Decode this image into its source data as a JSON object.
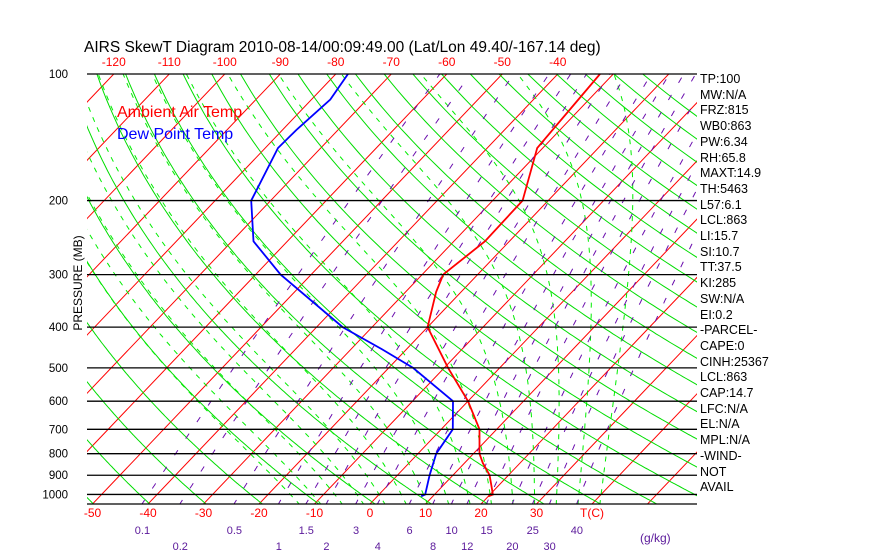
{
  "chart_data": {
    "type": "line",
    "title": "AIRS SkewT Diagram 2010-08-14/00:09:49.00 (Lat/Lon 49.40/-167.14 deg)",
    "ylabel": "PRESSURE (MB)",
    "xlabel": "T(C)",
    "mixing_ratio_unit": "(g/kg)",
    "ylim": [
      1050,
      100
    ],
    "y_scale": "log",
    "pressure_ticks": [
      "100",
      "200",
      "300",
      "400",
      "500",
      "600",
      "700",
      "800",
      "900",
      "1000"
    ],
    "pressure_tick_values": [
      100,
      200,
      300,
      400,
      500,
      600,
      700,
      800,
      900,
      1000
    ],
    "bottom_temp_ticks": [
      -50,
      -40,
      -30,
      -20,
      -10,
      0,
      10,
      20,
      30
    ],
    "bottom_temp_labels": [
      "-50",
      "-40",
      "-30",
      "-20",
      "-10",
      "0",
      "10",
      "20",
      "30"
    ],
    "top_temp_ticks": [
      -120,
      -110,
      -100,
      -90,
      -80,
      -70,
      -60,
      -50,
      -40
    ],
    "top_temp_labels": [
      "-120",
      "-110",
      "-100",
      "-90",
      "-80",
      "-70",
      "-60",
      "-50",
      "-40"
    ],
    "mixing_ratios": [
      0.1,
      0.2,
      0.5,
      1,
      1.5,
      2,
      3,
      4,
      6,
      8,
      10,
      12,
      15,
      20,
      25,
      30,
      40
    ],
    "mixing_ratio_labels": [
      "0.1",
      "0.2",
      "0.5",
      "1",
      "1.5",
      "2",
      "3",
      "4",
      "6",
      "8",
      "10",
      "12",
      "15",
      "20",
      "25",
      "30",
      "40"
    ],
    "legend": [
      "Ambient Air Temp",
      "Dew Point Temp"
    ],
    "legend_placement": "top-left",
    "series": [
      {
        "name": "Ambient Air Temp",
        "color": "#ff0000",
        "pressure": [
          1010,
          1000,
          900,
          842,
          800,
          700,
          600,
          500,
          400,
          330,
          300,
          250,
          200,
          150,
          115,
          100
        ],
        "temperature": [
          20.0,
          20.5,
          16.6,
          13.3,
          11.1,
          6.9,
          0.0,
          -9.3,
          -20.0,
          -24.5,
          -26.2,
          -24.4,
          -24.6,
          -31.0,
          -31.9,
          -32.4
        ]
      },
      {
        "name": "Dew Point Temp",
        "color": "#0000ff",
        "pressure": [
          1010,
          1000,
          900,
          800,
          700,
          600,
          500,
          452,
          400,
          300,
          250,
          200,
          150,
          136,
          115,
          100
        ],
        "temperature": [
          7.9,
          8.3,
          5.8,
          3.3,
          2.1,
          -2.7,
          -15.6,
          -24.3,
          -35.3,
          -55.5,
          -66.1,
          -73.5,
          -77.7,
          -77.5,
          -76.6,
          -77.8
        ]
      }
    ],
    "colors": {
      "isotherm": "#ff0000",
      "dry_adiabat": "#00dd00",
      "moist_adiabat": "#00ee00",
      "mixing_ratio": "#6a0dad",
      "axis_top": "#ff0000",
      "mixing_label": "#5a189a"
    }
  },
  "indices_panel": [
    "TP:100",
    "MW:N/A",
    "FRZ:815",
    "WB0:863",
    "PW:6.34",
    "RH:65.8",
    "MAXT:14.9",
    "TH:5463",
    "L57:6.1",
    "LCL:863",
    "LI:15.7",
    "SI:10.7",
    "TT:37.5",
    "KI:285",
    "SW:N/A",
    "EI:0.2",
    "-PARCEL-",
    "CAPE:0",
    "CINH:25367",
    "LCL:863",
    "CAP:14.7",
    "LFC:N/A",
    "EL:N/A",
    "MPL:N/A",
    "-WIND-",
    "NOT",
    "AVAIL"
  ]
}
